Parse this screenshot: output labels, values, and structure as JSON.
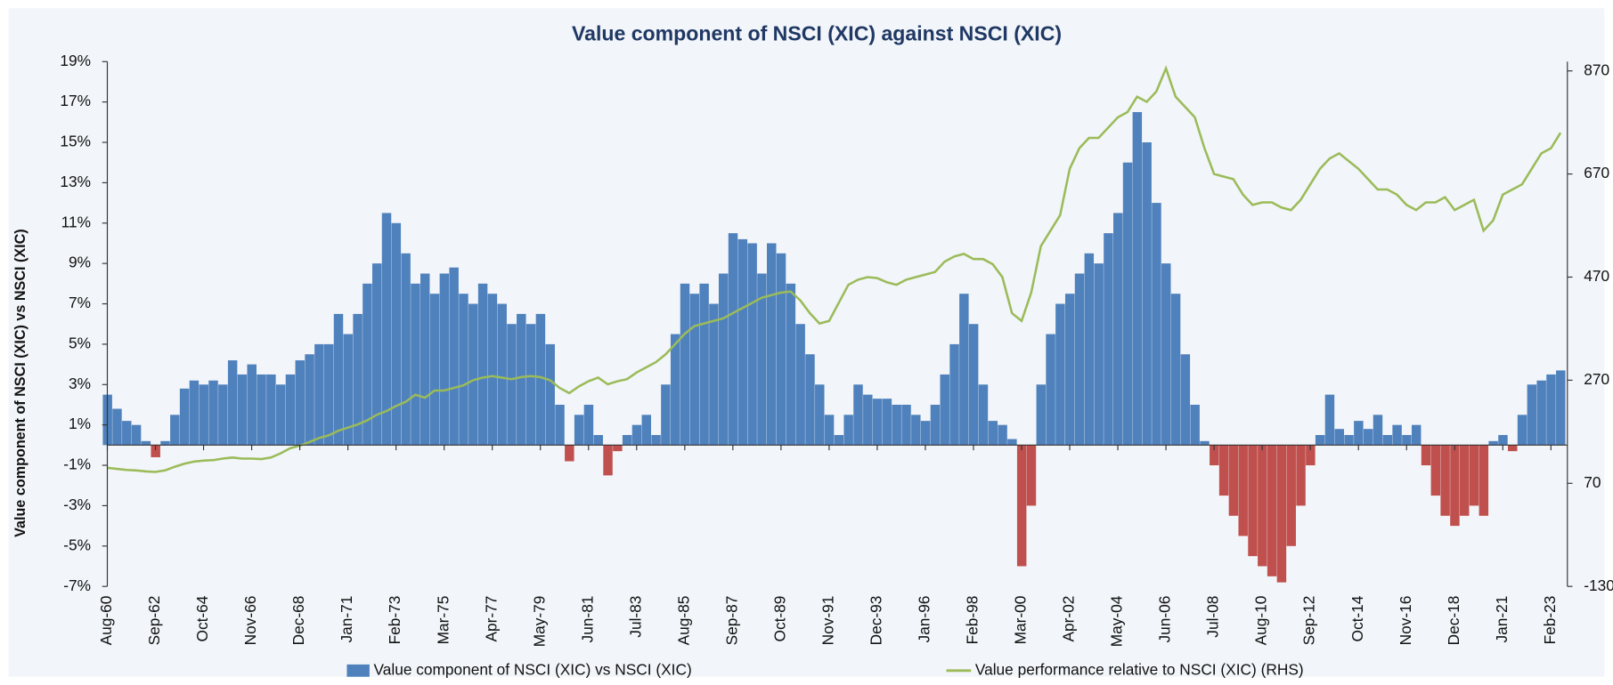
{
  "chart_data": {
    "type": "bar",
    "title": "Value component of NSCI (XIC) against NSCI (XIC)",
    "y_label": "Value component of NSCI (XIC) vs NSCI (XIC)",
    "categories": [
      "Aug-60",
      null,
      null,
      null,
      null,
      "Sep-62",
      null,
      null,
      null,
      null,
      "Oct-64",
      null,
      null,
      null,
      null,
      "Nov-66",
      null,
      null,
      null,
      null,
      "Dec-68",
      null,
      null,
      null,
      null,
      "Jan-71",
      null,
      null,
      null,
      null,
      "Feb-73",
      null,
      null,
      null,
      null,
      "Mar-75",
      null,
      null,
      null,
      null,
      "Apr-77",
      null,
      null,
      null,
      null,
      "May-79",
      null,
      null,
      null,
      null,
      "Jun-81",
      null,
      null,
      null,
      null,
      "Jul-83",
      null,
      null,
      null,
      null,
      "Aug-85",
      null,
      null,
      null,
      null,
      "Sep-87",
      null,
      null,
      null,
      null,
      "Oct-89",
      null,
      null,
      null,
      null,
      "Nov-91",
      null,
      null,
      null,
      null,
      "Dec-93",
      null,
      null,
      null,
      null,
      "Jan-96",
      null,
      null,
      null,
      null,
      "Feb-98",
      null,
      null,
      null,
      null,
      "Mar-00",
      null,
      null,
      null,
      null,
      "Apr-02",
      null,
      null,
      null,
      null,
      "May-04",
      null,
      null,
      null,
      null,
      "Jun-06",
      null,
      null,
      null,
      null,
      "Jul-08",
      null,
      null,
      null,
      null,
      "Aug-10",
      null,
      null,
      null,
      null,
      "Sep-12",
      null,
      null,
      null,
      null,
      "Oct-14",
      null,
      null,
      null,
      null,
      "Nov-16",
      null,
      null,
      null,
      null,
      "Dec-18",
      null,
      null,
      null,
      null,
      "Jan-21",
      null,
      null,
      null,
      null,
      "Feb-23",
      null
    ],
    "series": [
      {
        "name": "Value component of NSCI (XIC) vs NSCI (XIC)",
        "type": "bar",
        "color": "#4f81bd",
        "negative_color": "#c0504d",
        "values": [
          2.5,
          1.8,
          1.2,
          1.0,
          0.2,
          -0.6,
          0.2,
          1.5,
          2.8,
          3.2,
          3.0,
          3.2,
          3.0,
          4.2,
          3.5,
          4.0,
          3.5,
          3.5,
          3.0,
          3.5,
          4.2,
          4.5,
          5.0,
          5.0,
          6.5,
          5.5,
          6.5,
          8.0,
          9.0,
          11.5,
          11.0,
          9.5,
          8.0,
          8.5,
          7.5,
          8.5,
          8.8,
          7.5,
          7.0,
          8.0,
          7.5,
          7.0,
          6.0,
          6.5,
          6.0,
          6.5,
          5.0,
          2.0,
          -0.8,
          1.5,
          2.0,
          0.5,
          -1.5,
          -0.3,
          0.5,
          1.0,
          1.5,
          0.5,
          3.0,
          5.5,
          8.0,
          7.5,
          8.0,
          7.0,
          8.5,
          10.5,
          10.2,
          10.0,
          8.5,
          10.0,
          9.5,
          8.0,
          6.0,
          4.5,
          3.0,
          1.5,
          0.5,
          1.5,
          3.0,
          2.5,
          2.3,
          2.3,
          2.0,
          2.0,
          1.5,
          1.2,
          2.0,
          3.5,
          5.0,
          7.5,
          6.0,
          3.0,
          1.2,
          1.0,
          0.3,
          -6.0,
          -3.0,
          3.0,
          5.5,
          7.0,
          7.5,
          8.5,
          9.5,
          9.0,
          10.5,
          11.5,
          14.0,
          16.5,
          15.0,
          12.0,
          9.0,
          7.5,
          4.5,
          2.0,
          0.2,
          -1.0,
          -2.5,
          -3.5,
          -4.5,
          -5.5,
          -6.0,
          -6.5,
          -6.8,
          -5.0,
          -3.0,
          -1.0,
          0.5,
          2.5,
          0.8,
          0.5,
          1.2,
          0.8,
          1.5,
          0.5,
          1.0,
          0.5,
          1.0,
          -1.0,
          -2.5,
          -3.5,
          -4.0,
          -3.5,
          -3.0,
          -3.5,
          0.2,
          0.5,
          -0.3,
          1.5,
          3.0,
          3.2,
          3.5,
          3.7
        ]
      },
      {
        "name": "Value performance relative to NSCI (XIC) (RHS)",
        "type": "line",
        "axis": "y2",
        "color": "#9bbb59",
        "values": [
          100,
          98,
          96,
          95,
          93,
          92,
          95,
          102,
          108,
          112,
          114,
          115,
          118,
          120,
          118,
          118,
          117,
          120,
          128,
          138,
          143,
          150,
          158,
          163,
          172,
          178,
          184,
          192,
          203,
          210,
          220,
          228,
          242,
          236,
          250,
          250,
          255,
          260,
          270,
          275,
          278,
          275,
          272,
          276,
          278,
          276,
          270,
          255,
          245,
          258,
          268,
          275,
          262,
          268,
          272,
          285,
          295,
          305,
          320,
          340,
          360,
          375,
          380,
          385,
          390,
          400,
          410,
          420,
          430,
          435,
          440,
          442,
          425,
          400,
          380,
          385,
          420,
          455,
          465,
          470,
          468,
          460,
          455,
          465,
          470,
          475,
          480,
          500,
          510,
          515,
          505,
          505,
          495,
          470,
          400,
          385,
          440,
          530,
          560,
          590,
          680,
          720,
          740,
          740,
          760,
          780,
          790,
          820,
          810,
          830,
          875,
          820,
          800,
          780,
          720,
          670,
          665,
          660,
          630,
          610,
          615,
          615,
          605,
          600,
          620,
          650,
          680,
          700,
          710,
          695,
          680,
          660,
          640,
          640,
          630,
          610,
          600,
          615,
          615,
          625,
          600,
          610,
          620,
          560,
          580,
          630,
          640,
          650,
          680,
          710,
          720,
          750
        ]
      }
    ],
    "ylim": [
      -7,
      19
    ],
    "yticks": [
      {
        "value": -7,
        "label": "-7%"
      },
      {
        "value": -5,
        "label": "-5%"
      },
      {
        "value": -3,
        "label": "-3%"
      },
      {
        "value": -1,
        "label": "-1%"
      },
      {
        "value": 1,
        "label": "1%"
      },
      {
        "value": 3,
        "label": "3%"
      },
      {
        "value": 5,
        "label": "5%"
      },
      {
        "value": 7,
        "label": "7%"
      },
      {
        "value": 9,
        "label": "9%"
      },
      {
        "value": 11,
        "label": "11%"
      },
      {
        "value": 13,
        "label": "13%"
      },
      {
        "value": 15,
        "label": "15%"
      },
      {
        "value": 17,
        "label": "17%"
      },
      {
        "value": 19,
        "label": "19%"
      }
    ],
    "y2lim": [
      -130,
      888
    ],
    "y2ticks": [
      -130,
      70,
      270,
      470,
      670,
      870
    ],
    "grid": false,
    "legend": "bottom"
  }
}
